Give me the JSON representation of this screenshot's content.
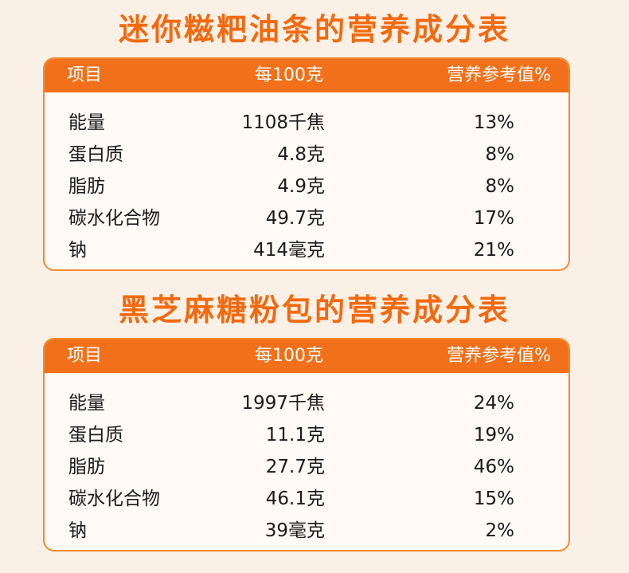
{
  "tables": [
    {
      "title": "迷你糍粑油条的营养成分表",
      "header": {
        "item": "项目",
        "per100": "每100克",
        "nrv": "营养参考值%"
      },
      "rows": [
        {
          "name": "能量",
          "value": "1108千焦",
          "nrv": "13%"
        },
        {
          "name": "蛋白质",
          "value": "4.8克",
          "nrv": "8%"
        },
        {
          "name": "脂肪",
          "value": "4.9克",
          "nrv": "8%"
        },
        {
          "name": "碳水化合物",
          "value": "49.7克",
          "nrv": "17%"
        },
        {
          "name": "钠",
          "value": "414毫克",
          "nrv": "21%"
        }
      ]
    },
    {
      "title": "黑芝麻糖粉包的营养成分表",
      "header": {
        "item": "项目",
        "per100": "每100克",
        "nrv": "营养参考值%"
      },
      "rows": [
        {
          "name": "能量",
          "value": "1997千焦",
          "nrv": "24%"
        },
        {
          "name": "蛋白质",
          "value": "11.1克",
          "nrv": "19%"
        },
        {
          "name": "脂肪",
          "value": "27.7克",
          "nrv": "46%"
        },
        {
          "name": "碳水化合物",
          "value": "46.1克",
          "nrv": "15%"
        },
        {
          "name": "钠",
          "value": "39毫克",
          "nrv": "2%"
        }
      ]
    }
  ],
  "colors": {
    "background": "#fbf0e6",
    "accent": "#f27019",
    "title": "#f26a10",
    "border": "#f48a2e"
  }
}
